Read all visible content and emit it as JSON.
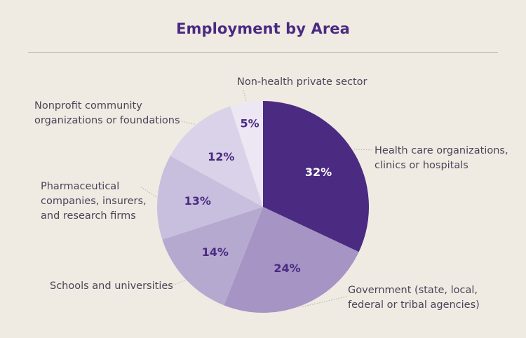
{
  "chart_data": {
    "type": "pie",
    "title": "Employment by Area",
    "slices": [
      {
        "label": "Health care organizations, clinics or hospitals",
        "label_lines": [
          "Health care organizations,",
          "clinics or hospitals"
        ],
        "value": 32,
        "display": "32%",
        "color": "#4b2a82",
        "text_color": "#ffffff"
      },
      {
        "label": "Government (state, local, federal or tribal agencies)",
        "label_lines": [
          "Government (state, local,",
          "federal or tribal agencies)"
        ],
        "value": 24,
        "display": "24%",
        "color": "#a594c4",
        "text_color": "#4b2a82"
      },
      {
        "label": "Schools and universities",
        "label_lines": [
          "Schools and universities"
        ],
        "value": 14,
        "display": "14%",
        "color": "#b5a9d0",
        "text_color": "#4b2a82"
      },
      {
        "label": "Pharmaceutical companies, insurers, and research firms",
        "label_lines": [
          "Pharmaceutical",
          "companies, insurers,",
          "and research firms"
        ],
        "value": 13,
        "display": "13%",
        "color": "#c8bedd",
        "text_color": "#4b2a82"
      },
      {
        "label": "Nonprofit community organizations or foundations",
        "label_lines": [
          "Nonprofit community",
          "organizations or foundations"
        ],
        "value": 12,
        "display": "12%",
        "color": "#dad2e8",
        "text_color": "#4b2a82"
      },
      {
        "label": "Non-health private sector",
        "label_lines": [
          "Non-health private sector"
        ],
        "value": 5,
        "display": "5%",
        "color": "#ece7f3",
        "text_color": "#4b2a82"
      }
    ]
  }
}
